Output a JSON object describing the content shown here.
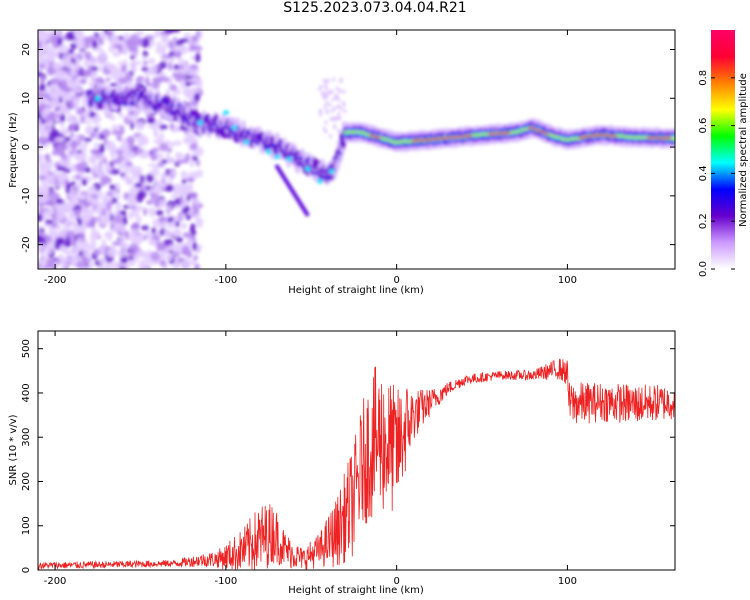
{
  "title": "S125.2023.073.04.04.R21",
  "chart_data": [
    {
      "type": "heatmap",
      "title": "",
      "xlabel": "Height of straight line (km)",
      "ylabel": "Frequency (Hz)",
      "xlim": [
        -210,
        163
      ],
      "ylim": [
        -25,
        24
      ],
      "xticks": [
        -200,
        -100,
        0,
        100
      ],
      "yticks": [
        -20,
        -10,
        0,
        10,
        20
      ],
      "ridge": {
        "x": [
          -175,
          -150,
          -130,
          -115,
          -100,
          -85,
          -70,
          -60,
          -50,
          -40,
          -35,
          -30,
          -20,
          -10,
          0,
          20,
          50,
          70,
          80,
          90,
          100,
          120,
          140,
          163
        ],
        "y": [
          10,
          10,
          8,
          5,
          4,
          2,
          0,
          -2,
          -4,
          -6,
          -3,
          3,
          3,
          2,
          1,
          1.5,
          2.5,
          3,
          4,
          2.5,
          1.5,
          2.5,
          2,
          1.8
        ]
      },
      "colorbar": {
        "label": "Normalized spectral amplitude",
        "range": [
          0,
          1
        ],
        "ticks": [
          "0.0",
          "0.2",
          "0.4",
          "0.6",
          "0.8"
        ],
        "colors": [
          "#ffffff",
          "#cc99ff",
          "#6600cc",
          "#0000ff",
          "#00ffff",
          "#00ff00",
          "#ffff00",
          "#ff8000",
          "#ff0033",
          "#ff0066"
        ]
      }
    },
    {
      "type": "line",
      "title": "",
      "xlabel": "Height of straight line (km)",
      "ylabel": "SNR (10 * v/v)",
      "xlim": [
        -210,
        163
      ],
      "ylim": [
        0,
        540
      ],
      "xticks": [
        -200,
        -100,
        0,
        100
      ],
      "yticks": [
        0,
        100,
        200,
        300,
        400,
        500
      ],
      "color": "#ee2222",
      "series": [
        {
          "name": "SNR",
          "x": [
            -210,
            -170,
            -130,
            -115,
            -105,
            -100,
            -90,
            -80,
            -72,
            -65,
            -55,
            -45,
            -35,
            -25,
            -20,
            -15,
            -10,
            -5,
            0,
            5,
            10,
            20,
            30,
            40,
            60,
            80,
            95,
            100,
            101,
            120,
            140,
            163
          ],
          "mean": [
            10,
            12,
            15,
            22,
            25,
            30,
            45,
            70,
            85,
            45,
            25,
            45,
            85,
            160,
            240,
            280,
            300,
            280,
            270,
            320,
            350,
            380,
            410,
            430,
            440,
            440,
            455,
            445,
            375,
            380,
            375,
            380
          ],
          "spread": [
            8,
            8,
            8,
            15,
            20,
            30,
            50,
            80,
            70,
            40,
            25,
            40,
            80,
            130,
            140,
            170,
            170,
            160,
            140,
            110,
            60,
            30,
            15,
            12,
            10,
            12,
            25,
            30,
            50,
            45,
            45,
            40
          ]
        }
      ]
    }
  ]
}
